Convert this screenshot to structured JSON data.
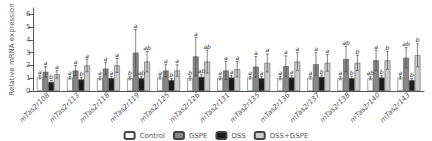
{
  "chart_data": {
    "type": "bar",
    "categories": [
      "mTas2r108",
      "mTas2r113",
      "mTas2r118",
      "mTas2r119",
      "mTas2r125",
      "mTas2r126",
      "mTas2r131",
      "mTas2r135",
      "mTas2r136",
      "mTas2r137",
      "mTas2r138",
      "mTas2r140",
      "mTas2r143"
    ],
    "y_label": "Relative mRNA expression",
    "ylim": [
      0,
      6.5
    ],
    "yticks": [
      0,
      1,
      2,
      3,
      4,
      5,
      6
    ],
    "grid": false,
    "legend": "bottom",
    "series": [
      {
        "name": "Control",
        "color": "#ffffff",
        "values": [
          1.1,
          1.05,
          1.0,
          1.0,
          1.05,
          1.0,
          1.0,
          1.05,
          1.0,
          1.05,
          1.0,
          1.0,
          1.05
        ],
        "errors": [
          0.15,
          0.12,
          0.12,
          0.12,
          0.12,
          0.15,
          0.12,
          0.12,
          0.12,
          0.12,
          0.12,
          0.12,
          0.12
        ],
        "sig_letters": [
          "a",
          "a",
          "a",
          "b",
          "a",
          "b",
          "a",
          "a",
          "a",
          "a",
          "a",
          "ab",
          "a"
        ]
      },
      {
        "name": "GSPE",
        "color": "#888888",
        "values": [
          1.5,
          1.6,
          1.75,
          3.0,
          1.6,
          2.7,
          1.6,
          1.9,
          1.95,
          2.1,
          2.5,
          2.4,
          2.6
        ],
        "errors": [
          0.4,
          0.4,
          0.5,
          1.8,
          0.5,
          1.5,
          0.7,
          0.8,
          0.8,
          0.9,
          1.0,
          0.8,
          0.8
        ],
        "sig_letters": [
          "a",
          "a",
          "a",
          "a",
          "a",
          "a",
          "a",
          "a",
          "a",
          "a",
          "ab",
          "a",
          "ab"
        ]
      },
      {
        "name": "DSS",
        "color": "#1a1a1a",
        "values": [
          0.7,
          0.9,
          1.0,
          1.0,
          0.85,
          1.1,
          1.05,
          1.0,
          1.05,
          1.1,
          1.0,
          1.05,
          0.85
        ],
        "errors": [
          0.12,
          0.15,
          0.15,
          0.15,
          0.12,
          0.2,
          0.15,
          0.15,
          0.15,
          0.15,
          0.15,
          0.15,
          0.12
        ],
        "sig_letters": [
          "b",
          "b",
          "a",
          "ab",
          "b",
          "ab",
          "a",
          "a",
          "a",
          "b",
          "b",
          "b",
          "b"
        ]
      },
      {
        "name": "DSS+GSPE",
        "color": "#cccccc",
        "values": [
          1.3,
          2.0,
          2.0,
          2.3,
          1.6,
          2.3,
          1.7,
          2.2,
          2.3,
          2.2,
          2.2,
          2.4,
          2.8
        ],
        "errors": [
          0.3,
          0.5,
          0.55,
          0.8,
          0.45,
          0.9,
          0.6,
          0.7,
          0.7,
          0.65,
          0.6,
          0.7,
          0.9
        ],
        "sig_letters": [
          "a",
          "a",
          "a",
          "ab",
          "a",
          "ab",
          "a",
          "a",
          "a",
          "a",
          "b",
          "b",
          "b"
        ]
      }
    ]
  }
}
